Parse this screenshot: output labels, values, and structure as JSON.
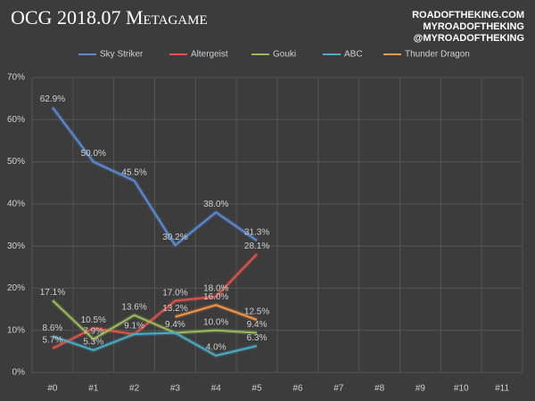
{
  "chart_data": {
    "type": "line",
    "title": "OCG 2018.07 Metagame",
    "watermark": [
      "ROADOFTHEKING.COM",
      "MYROADOFTHEKING",
      "@MYROADOFTHEKING"
    ],
    "categories": [
      "#0",
      "#1",
      "#2",
      "#3",
      "#4",
      "#5",
      "#6",
      "#7",
      "#8",
      "#9",
      "#10",
      "#11"
    ],
    "series": [
      {
        "name": "Sky Striker",
        "color": "#5b8bd6",
        "values": [
          62.9,
          50.0,
          45.5,
          30.2,
          38.0,
          31.3,
          null,
          null,
          null,
          null,
          null,
          null
        ],
        "value_labels": [
          "62.9%",
          "50.0%",
          "45.5%",
          "30.2%",
          "38.0%",
          "31.3%",
          null,
          null,
          null,
          null,
          null,
          null
        ]
      },
      {
        "name": "Altergeist",
        "color": "#e0524a",
        "values": [
          5.7,
          10.5,
          9.1,
          17.0,
          18.0,
          28.1,
          null,
          null,
          null,
          null,
          null,
          null
        ],
        "value_labels": [
          "5.7%",
          "10.5%",
          "9.1%",
          "17.0%",
          "18.0%",
          "28.1%",
          null,
          null,
          null,
          null,
          null,
          null
        ]
      },
      {
        "name": "Gouki",
        "color": "#9bbb59",
        "values": [
          17.1,
          7.9,
          13.6,
          9.4,
          10.0,
          9.4,
          null,
          null,
          null,
          null,
          null,
          null
        ],
        "value_labels": [
          "17.1%",
          "7.9%",
          "13.6%",
          "9.4%",
          "10.0%",
          "9.4%",
          null,
          null,
          null,
          null,
          null,
          null
        ]
      },
      {
        "name": "ABC",
        "color": "#4bacc6",
        "values": [
          8.6,
          5.3,
          9.1,
          9.4,
          4.0,
          6.3,
          null,
          null,
          null,
          null,
          null,
          null
        ],
        "value_labels": [
          "8.6%",
          "5.3%",
          null,
          null,
          "4.0%",
          "6.3%",
          null,
          null,
          null,
          null,
          null,
          null
        ]
      },
      {
        "name": "Thunder Dragon",
        "color": "#f79646",
        "values": [
          null,
          null,
          null,
          13.2,
          16.0,
          12.5,
          null,
          null,
          null,
          null,
          null,
          null
        ],
        "value_labels": [
          null,
          null,
          null,
          "13.2%",
          "16.0%",
          "12.5%",
          null,
          null,
          null,
          null,
          null,
          null
        ]
      }
    ],
    "ylim": [
      0,
      70
    ],
    "yticks": [
      {
        "value": 0,
        "label": "0%"
      },
      {
        "value": 10,
        "label": "10%"
      },
      {
        "value": 20,
        "label": "20%"
      },
      {
        "value": 30,
        "label": "30%"
      },
      {
        "value": 40,
        "label": "40%"
      },
      {
        "value": 50,
        "label": "50%"
      },
      {
        "value": 60,
        "label": "60%"
      },
      {
        "value": 70,
        "label": "70%"
      }
    ],
    "grid": true,
    "legend": "top"
  }
}
